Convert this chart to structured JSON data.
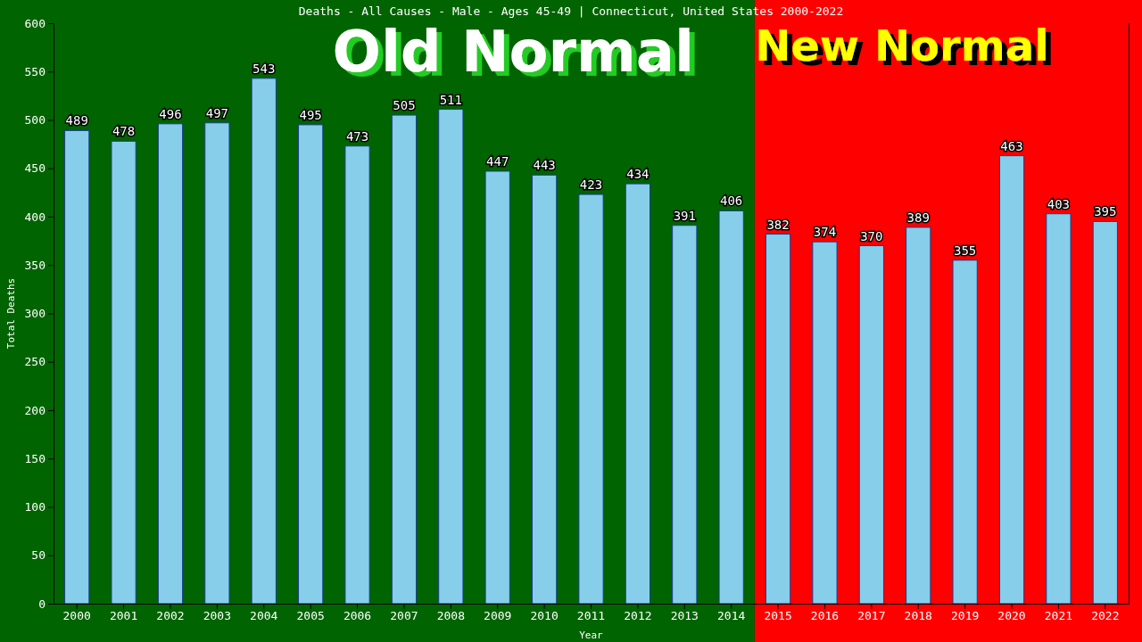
{
  "chart_data": {
    "type": "bar",
    "title": "Deaths - All Causes - Male - Ages 45-49 | Connecticut, United States 2000-2022",
    "xlabel": "Year",
    "ylabel": "Total Deaths",
    "categories": [
      "2000",
      "2001",
      "2002",
      "2003",
      "2004",
      "2005",
      "2006",
      "2007",
      "2008",
      "2009",
      "2010",
      "2011",
      "2012",
      "2013",
      "2014",
      "2015",
      "2016",
      "2017",
      "2018",
      "2019",
      "2020",
      "2021",
      "2022"
    ],
    "values": [
      489,
      478,
      496,
      497,
      543,
      495,
      473,
      505,
      511,
      447,
      443,
      423,
      434,
      391,
      406,
      382,
      374,
      370,
      389,
      355,
      463,
      403,
      395
    ],
    "color": "#87ceeb",
    "ylim": [
      0,
      600
    ],
    "yticks": [
      0,
      50,
      100,
      150,
      200,
      250,
      300,
      350,
      400,
      450,
      500,
      550,
      600
    ],
    "data_labels": true,
    "grid": false,
    "bands": [
      {
        "axis": "x",
        "from": "2000",
        "to": "2014",
        "label": "Old Normal",
        "color": "#006400"
      },
      {
        "axis": "x",
        "from": "2015",
        "to": "2022",
        "label": "New Normal",
        "color": "#ff0000"
      }
    ]
  }
}
